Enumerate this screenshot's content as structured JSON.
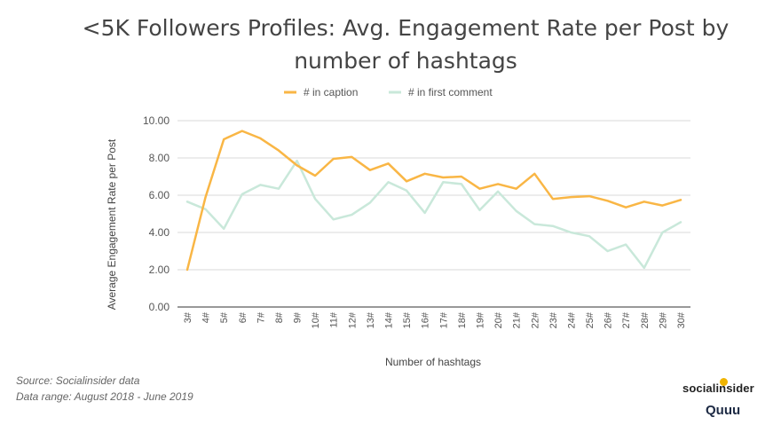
{
  "chart_data": {
    "type": "line",
    "title_lines": [
      "<5K Followers Profiles: Avg. Engagement Rate per Post by",
      "number of hashtags"
    ],
    "xlabel": "Number of hashtags",
    "ylabel": "Average Engagement Rate per Post",
    "ylim": [
      0,
      10
    ],
    "yticks": [
      "0.00",
      "2.00",
      "4.00",
      "6.00",
      "8.00",
      "10.00"
    ],
    "grid": true,
    "legend_position": "top-center",
    "categories": [
      "3#",
      "4#",
      "5#",
      "6#",
      "7#",
      "8#",
      "9#",
      "10#",
      "11#",
      "12#",
      "13#",
      "14#",
      "15#",
      "16#",
      "17#",
      "18#",
      "19#",
      "20#",
      "21#",
      "22#",
      "23#",
      "24#",
      "25#",
      "26#",
      "27#",
      "28#",
      "29#",
      "30#"
    ],
    "series": [
      {
        "name": "# in caption",
        "color": "#f9b645",
        "values": [
          2.0,
          5.9,
          9.0,
          9.45,
          9.05,
          8.4,
          7.6,
          7.05,
          7.95,
          8.05,
          7.35,
          7.7,
          6.75,
          7.15,
          6.95,
          7.0,
          6.35,
          6.6,
          6.35,
          7.15,
          5.8,
          5.9,
          5.95,
          5.7,
          5.35,
          5.65,
          5.45,
          5.75
        ]
      },
      {
        "name": "# in first comment",
        "color": "#c9e8da",
        "values": [
          5.65,
          5.25,
          4.2,
          6.05,
          6.55,
          6.35,
          7.85,
          5.8,
          4.7,
          4.95,
          5.6,
          6.7,
          6.25,
          5.05,
          6.7,
          6.6,
          5.2,
          6.2,
          5.15,
          4.45,
          4.35,
          4.0,
          3.8,
          3.0,
          3.35,
          2.1,
          4.0,
          4.55
        ]
      }
    ]
  },
  "source_line": "Source: Socialinsider data",
  "date_range_line": "Data range: August 2018 - June 2019",
  "logos": {
    "brand_primary": "socialinsider",
    "brand_secondary": "Quuu"
  }
}
